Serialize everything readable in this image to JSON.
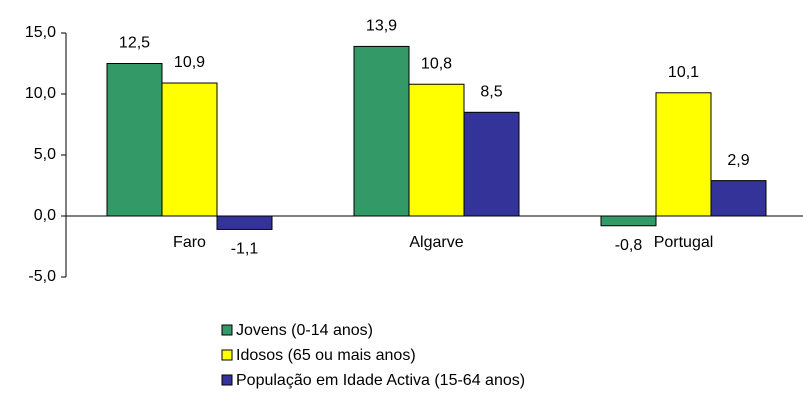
{
  "chart_data": {
    "type": "bar",
    "categories": [
      "Faro",
      "Algarve",
      "Portugal"
    ],
    "series": [
      {
        "name": "Jovens (0-14 anos)",
        "color": "#339966",
        "values": [
          12.5,
          13.9,
          -0.8
        ],
        "value_labels": [
          "12,5",
          "13,9",
          "-0,8"
        ]
      },
      {
        "name": "Idosos (65 ou mais anos)",
        "color": "#ffff00",
        "values": [
          10.9,
          10.8,
          10.1
        ],
        "value_labels": [
          "10,9",
          "10,8",
          "10,1"
        ]
      },
      {
        "name": "População em Idade Activa (15-64 anos)",
        "color": "#333399",
        "values": [
          -1.1,
          8.5,
          2.9
        ],
        "value_labels": [
          "-1,1",
          "8,5",
          "2,9"
        ]
      }
    ],
    "ylim": [
      -5,
      15
    ],
    "yticks": [
      {
        "value": -5,
        "label": "-5,0"
      },
      {
        "value": 0,
        "label": "0,0"
      },
      {
        "value": 5,
        "label": "5,0"
      },
      {
        "value": 10,
        "label": "10,0"
      },
      {
        "value": 15,
        "label": "15,0"
      }
    ],
    "grid": false
  }
}
